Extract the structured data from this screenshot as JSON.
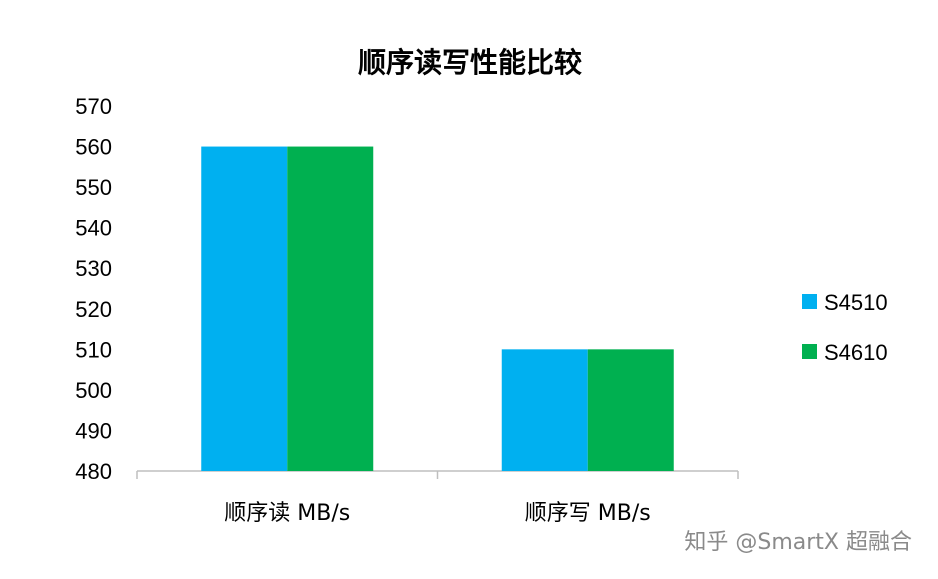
{
  "chart_data": {
    "type": "bar",
    "title": "顺序读写性能比较",
    "categories": [
      "顺序读 MB/s",
      "顺序写 MB/s"
    ],
    "series": [
      {
        "name": "S4510",
        "values": [
          560,
          510
        ],
        "color": "#00B0F0"
      },
      {
        "name": "S4610",
        "values": [
          560,
          510
        ],
        "color": "#00B050"
      }
    ],
    "ylim": [
      480,
      570
    ],
    "yticks": [
      480,
      490,
      500,
      510,
      520,
      530,
      540,
      550,
      560,
      570
    ],
    "xlabel": "",
    "ylabel": "",
    "grid": false,
    "legend": "right"
  },
  "watermark": "知乎 @SmartX 超融合"
}
